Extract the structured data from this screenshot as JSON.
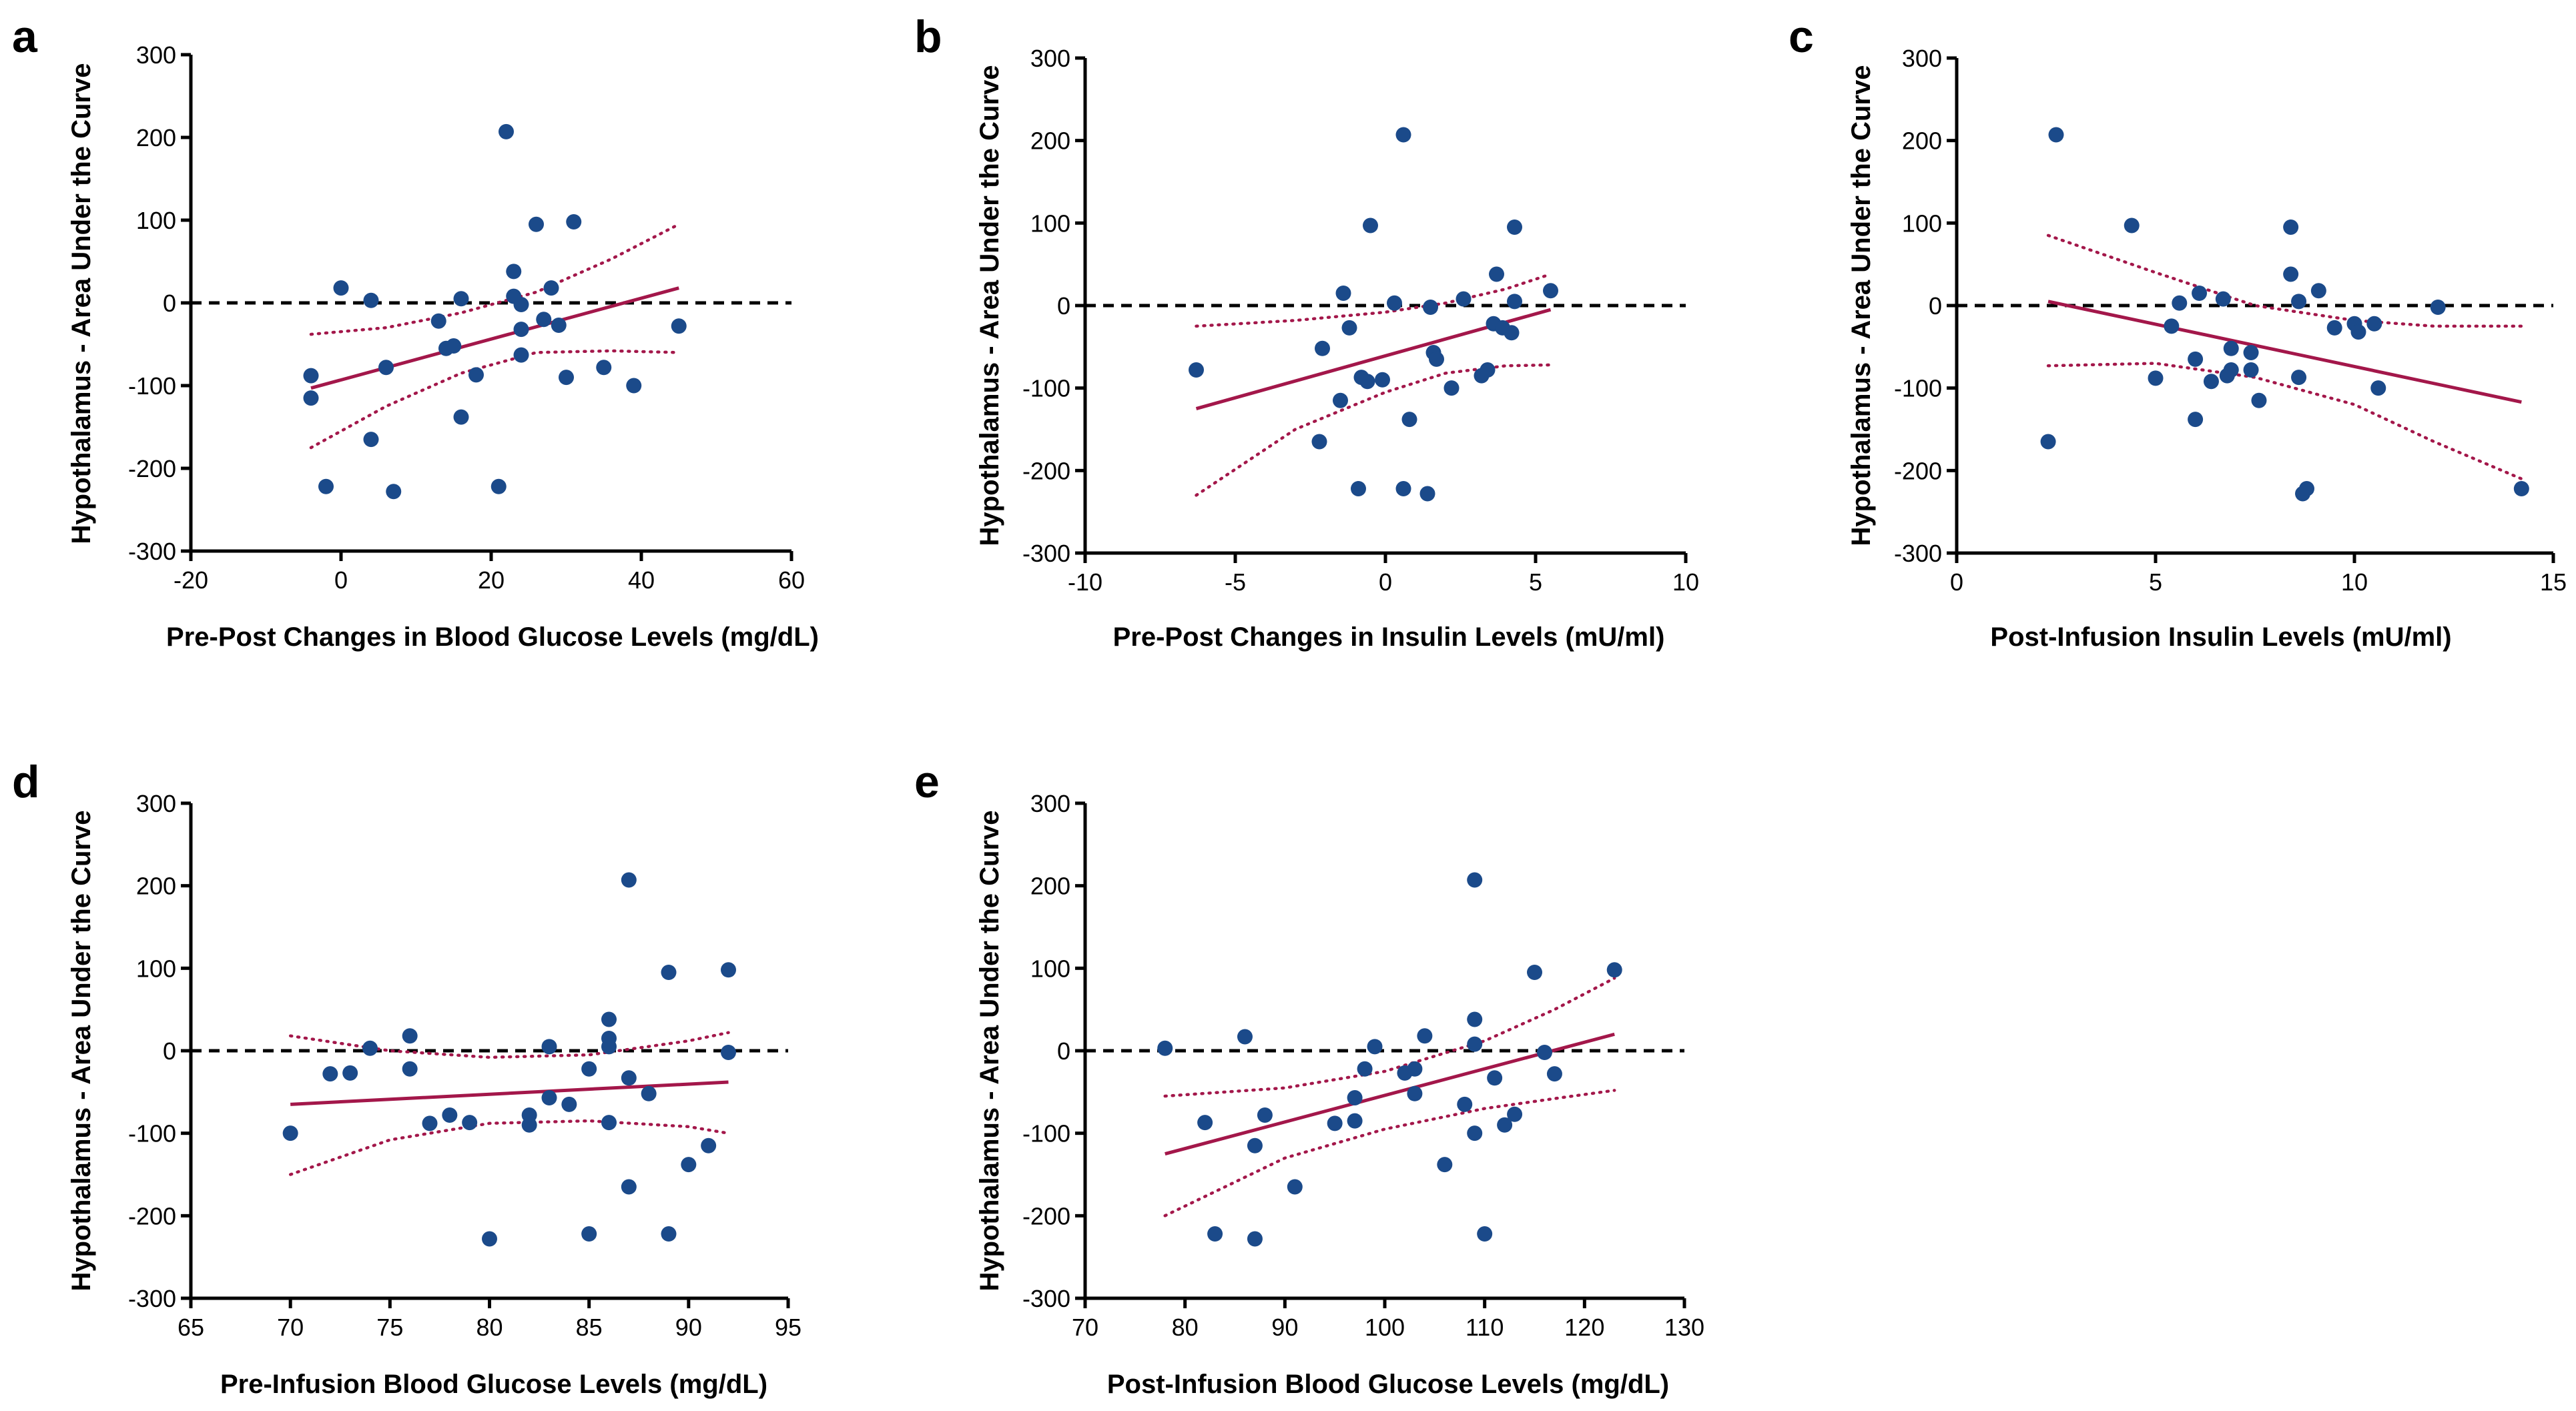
{
  "colors": {
    "point": "#1b4a8a",
    "fit": "#a3174a",
    "axis": "#000000"
  },
  "chart_data": [
    {
      "panel": "a",
      "type": "scatter",
      "xlabel": "Pre-Post Changes in Blood Glucose Levels (mg/dL)",
      "ylabel": "Hypothalamus - Area Under the Curve",
      "xlim": [
        -20,
        60
      ],
      "ylim": [
        -300,
        300
      ],
      "xticks": [
        -20,
        0,
        20,
        40,
        60
      ],
      "yticks": [
        -300,
        -200,
        -100,
        0,
        100,
        200,
        300
      ],
      "reference_line_y": 0,
      "points": [
        [
          -4,
          -88
        ],
        [
          -4,
          -115
        ],
        [
          -2,
          -222
        ],
        [
          0,
          18
        ],
        [
          4,
          3
        ],
        [
          4,
          -165
        ],
        [
          6,
          -78
        ],
        [
          7,
          -228
        ],
        [
          13,
          -22
        ],
        [
          14,
          -55
        ],
        [
          15,
          -52
        ],
        [
          16,
          5
        ],
        [
          16,
          -138
        ],
        [
          18,
          -87
        ],
        [
          21,
          -222
        ],
        [
          22,
          207
        ],
        [
          23,
          38
        ],
        [
          23,
          8
        ],
        [
          24,
          -2
        ],
        [
          24,
          -32
        ],
        [
          24,
          -63
        ],
        [
          26,
          95
        ],
        [
          27,
          -20
        ],
        [
          28,
          18
        ],
        [
          29,
          -27
        ],
        [
          30,
          -90
        ],
        [
          31,
          98
        ],
        [
          35,
          -78
        ],
        [
          39,
          -100
        ],
        [
          45,
          -28
        ]
      ],
      "fit": {
        "x": [
          -4,
          45
        ],
        "y": [
          -103,
          18
        ]
      },
      "ci_upper": {
        "x": [
          -4,
          6,
          16,
          26,
          36,
          45
        ],
        "y": [
          -38,
          -30,
          -12,
          13,
          53,
          95
        ]
      },
      "ci_lower": {
        "x": [
          -4,
          6,
          16,
          26,
          36,
          45
        ],
        "y": [
          -175,
          -125,
          -85,
          -60,
          -58,
          -60
        ]
      }
    },
    {
      "panel": "b",
      "type": "scatter",
      "xlabel": "Pre-Post Changes in Insulin Levels (mU/ml)",
      "ylabel": "Hypothalamus - Area Under the Curve",
      "xlim": [
        -10,
        10
      ],
      "ylim": [
        -300,
        300
      ],
      "xticks": [
        -10,
        -5,
        0,
        5,
        10
      ],
      "yticks": [
        -300,
        -200,
        -100,
        0,
        100,
        200,
        300
      ],
      "reference_line_y": 0,
      "points": [
        [
          -6.3,
          -78
        ],
        [
          -2.1,
          -52
        ],
        [
          -2.2,
          -165
        ],
        [
          -1.5,
          -115
        ],
        [
          -1.4,
          15
        ],
        [
          -1.2,
          -27
        ],
        [
          -0.9,
          -222
        ],
        [
          -0.8,
          -87
        ],
        [
          -0.6,
          -92
        ],
        [
          -0.5,
          97
        ],
        [
          -0.1,
          -90
        ],
        [
          0.3,
          3
        ],
        [
          0.6,
          -222
        ],
        [
          0.6,
          207
        ],
        [
          0.8,
          -138
        ],
        [
          1.4,
          -228
        ],
        [
          1.5,
          -2
        ],
        [
          1.6,
          -57
        ],
        [
          1.7,
          -65
        ],
        [
          2.2,
          -100
        ],
        [
          2.6,
          8
        ],
        [
          3.2,
          -85
        ],
        [
          3.4,
          -78
        ],
        [
          3.6,
          -22
        ],
        [
          3.7,
          38
        ],
        [
          3.9,
          -27
        ],
        [
          4.2,
          -33
        ],
        [
          4.3,
          5
        ],
        [
          4.3,
          95
        ],
        [
          5.5,
          18
        ]
      ],
      "fit": {
        "x": [
          -6.3,
          5.5
        ],
        "y": [
          -125,
          -5
        ]
      },
      "ci_upper": {
        "x": [
          -6.3,
          -3,
          0,
          2,
          4,
          5.5
        ],
        "y": [
          -25,
          -18,
          -8,
          3,
          20,
          38
        ]
      },
      "ci_lower": {
        "x": [
          -6.3,
          -3,
          0,
          2,
          4,
          5.5
        ],
        "y": [
          -230,
          -150,
          -105,
          -82,
          -73,
          -72
        ]
      }
    },
    {
      "panel": "c",
      "type": "scatter",
      "xlabel": "Post-Infusion Insulin Levels (mU/ml)",
      "ylabel": "Hypothalamus - Area Under the Curve",
      "xlim": [
        0,
        15
      ],
      "ylim": [
        -300,
        300
      ],
      "xticks": [
        0,
        5,
        10,
        15
      ],
      "yticks": [
        -300,
        -200,
        -100,
        0,
        100,
        200,
        300
      ],
      "reference_line_y": 0,
      "points": [
        [
          2.3,
          -165
        ],
        [
          2.5,
          207
        ],
        [
          4.4,
          97
        ],
        [
          5,
          -88
        ],
        [
          5.4,
          -25
        ],
        [
          5.6,
          3
        ],
        [
          6,
          -65
        ],
        [
          6,
          -138
        ],
        [
          6.1,
          15
        ],
        [
          6.4,
          -92
        ],
        [
          6.7,
          8
        ],
        [
          6.8,
          -85
        ],
        [
          6.9,
          -52
        ],
        [
          6.9,
          -78
        ],
        [
          7.4,
          -57
        ],
        [
          7.4,
          -78
        ],
        [
          7.6,
          -115
        ],
        [
          8.4,
          38
        ],
        [
          8.4,
          95
        ],
        [
          8.6,
          5
        ],
        [
          8.6,
          -87
        ],
        [
          8.7,
          -228
        ],
        [
          8.8,
          -222
        ],
        [
          9.1,
          18
        ],
        [
          9.5,
          -27
        ],
        [
          10,
          -22
        ],
        [
          10.1,
          -32
        ],
        [
          10.5,
          -22
        ],
        [
          10.6,
          -100
        ],
        [
          12.1,
          -2
        ],
        [
          14.2,
          -222
        ]
      ],
      "fit": {
        "x": [
          2.3,
          14.2
        ],
        "y": [
          5,
          -117
        ]
      },
      "ci_upper": {
        "x": [
          2.3,
          5,
          7.5,
          10,
          12,
          14.2
        ],
        "y": [
          85,
          40,
          0,
          -18,
          -25,
          -25
        ]
      },
      "ci_lower": {
        "x": [
          2.3,
          5,
          7.5,
          10,
          12,
          14.2
        ],
        "y": [
          -73,
          -70,
          -87,
          -120,
          -165,
          -210
        ]
      }
    },
    {
      "panel": "d",
      "type": "scatter",
      "xlabel": "Pre-Infusion Blood Glucose Levels (mg/dL)",
      "ylabel": "Hypothalamus - Area Under the Curve",
      "xlim": [
        65,
        95
      ],
      "ylim": [
        -300,
        300
      ],
      "xticks": [
        65,
        70,
        75,
        80,
        85,
        90,
        95
      ],
      "yticks": [
        -300,
        -200,
        -100,
        0,
        100,
        200,
        300
      ],
      "reference_line_y": 0,
      "points": [
        [
          70,
          -100
        ],
        [
          72,
          -28
        ],
        [
          73,
          -27
        ],
        [
          74,
          3
        ],
        [
          76,
          18
        ],
        [
          76,
          -22
        ],
        [
          77,
          -88
        ],
        [
          78,
          -78
        ],
        [
          79,
          -87
        ],
        [
          80,
          -228
        ],
        [
          82,
          -78
        ],
        [
          82,
          -90
        ],
        [
          83,
          5
        ],
        [
          83,
          -57
        ],
        [
          84,
          -65
        ],
        [
          85,
          -222
        ],
        [
          85,
          -22
        ],
        [
          86,
          38
        ],
        [
          86,
          15
        ],
        [
          86,
          5
        ],
        [
          86,
          -87
        ],
        [
          87,
          207
        ],
        [
          87,
          -33
        ],
        [
          87,
          -165
        ],
        [
          88,
          -52
        ],
        [
          89,
          95
        ],
        [
          89,
          -222
        ],
        [
          90,
          -138
        ],
        [
          91,
          -115
        ],
        [
          92,
          98
        ],
        [
          92,
          -2
        ]
      ],
      "fit": {
        "x": [
          70,
          92
        ],
        "y": [
          -65,
          -38
        ]
      },
      "ci_upper": {
        "x": [
          70,
          75,
          80,
          85,
          90,
          92
        ],
        "y": [
          18,
          0,
          -8,
          -5,
          12,
          22
        ]
      },
      "ci_lower": {
        "x": [
          70,
          75,
          80,
          85,
          90,
          92
        ],
        "y": [
          -150,
          -108,
          -88,
          -85,
          -92,
          -100
        ]
      }
    },
    {
      "panel": "e",
      "type": "scatter",
      "xlabel": "Post-Infusion Blood Glucose Levels (mg/dL)",
      "ylabel": "Hypothalamus - Area Under the Curve",
      "xlim": [
        70,
        130
      ],
      "ylim": [
        -300,
        300
      ],
      "xticks": [
        70,
        80,
        90,
        100,
        110,
        120,
        130
      ],
      "yticks": [
        -300,
        -200,
        -100,
        0,
        100,
        200,
        300
      ],
      "reference_line_y": 0,
      "points": [
        [
          78,
          3
        ],
        [
          82,
          -87
        ],
        [
          83,
          -222
        ],
        [
          86,
          17
        ],
        [
          87,
          -115
        ],
        [
          87,
          -228
        ],
        [
          88,
          -78
        ],
        [
          91,
          -165
        ],
        [
          95,
          -88
        ],
        [
          97,
          -85
        ],
        [
          97,
          -57
        ],
        [
          98,
          -22
        ],
        [
          99,
          5
        ],
        [
          102,
          -27
        ],
        [
          103,
          -52
        ],
        [
          103,
          -22
        ],
        [
          104,
          18
        ],
        [
          106,
          -138
        ],
        [
          108,
          -65
        ],
        [
          109,
          207
        ],
        [
          109,
          38
        ],
        [
          109,
          -100
        ],
        [
          109,
          8
        ],
        [
          110,
          -222
        ],
        [
          111,
          -33
        ],
        [
          112,
          -90
        ],
        [
          113,
          -77
        ],
        [
          115,
          95
        ],
        [
          116,
          -2
        ],
        [
          117,
          -28
        ],
        [
          123,
          98
        ]
      ],
      "fit": {
        "x": [
          78,
          123
        ],
        "y": [
          -125,
          20
        ]
      },
      "ci_upper": {
        "x": [
          78,
          90,
          100,
          110,
          117,
          123
        ],
        "y": [
          -55,
          -45,
          -25,
          12,
          50,
          88
        ]
      },
      "ci_lower": {
        "x": [
          78,
          90,
          100,
          110,
          117,
          123
        ],
        "y": [
          -200,
          -130,
          -95,
          -70,
          -58,
          -48
        ]
      }
    }
  ]
}
